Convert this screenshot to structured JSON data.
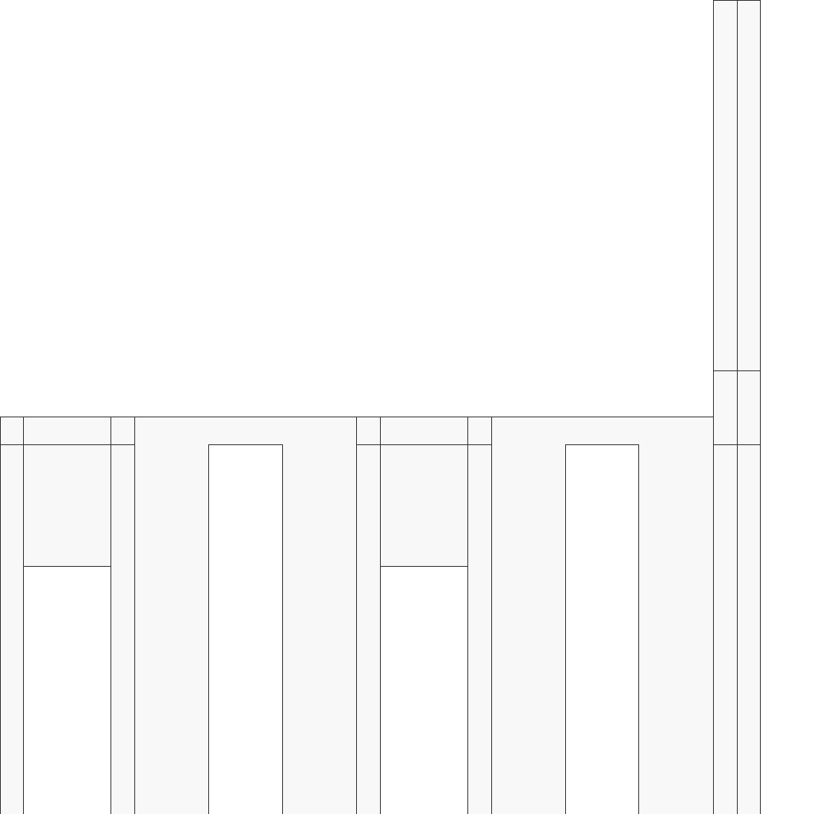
{
  "colors": {
    "background": "#ffffff",
    "panel": "#f8f8f8",
    "line": "#333333"
  }
}
